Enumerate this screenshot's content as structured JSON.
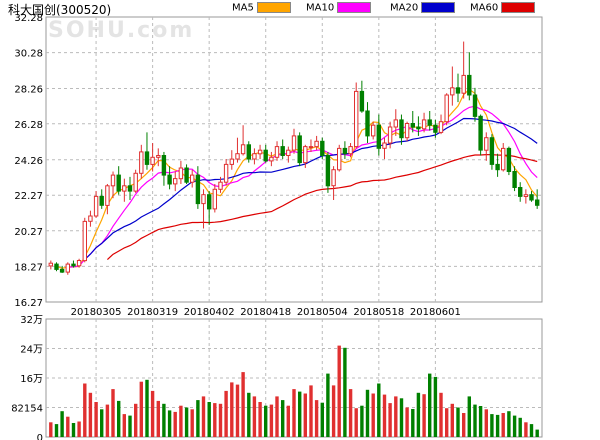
{
  "header": {
    "title": "科大国创(300520)",
    "watermark": "SOHU.com"
  },
  "legend": [
    {
      "label": "MA5",
      "color": "#ffa500"
    },
    {
      "label": "MA10",
      "color": "#ff00ff"
    },
    {
      "label": "MA20",
      "color": "#0000cc"
    },
    {
      "label": "MA60",
      "color": "#dd0000"
    }
  ],
  "colors": {
    "up": "#e03030",
    "down": "#008000",
    "grid": "#bbbbbb"
  },
  "chart_data": [
    {
      "type": "candlestick",
      "y_ticks": [
        "32.28",
        "30.28",
        "28.26",
        "26.28",
        "24.26",
        "22.27",
        "20.27",
        "18.27",
        "16.27"
      ],
      "ylim": [
        16.27,
        32.28
      ],
      "x_tick_labels": [
        "20180305",
        "20180319",
        "20180402",
        "20180418",
        "20180504",
        "20180518",
        "20180601"
      ],
      "x_tick_index": [
        8,
        18,
        28,
        38,
        48,
        58,
        68
      ],
      "grid": true,
      "ohlc": [
        [
          18.3,
          18.6,
          18.1,
          18.45
        ],
        [
          18.4,
          18.5,
          18.0,
          18.1
        ],
        [
          18.1,
          18.3,
          17.9,
          17.95
        ],
        [
          17.95,
          18.5,
          17.8,
          18.4
        ],
        [
          18.4,
          18.6,
          18.2,
          18.3
        ],
        [
          18.3,
          18.7,
          18.2,
          18.6
        ],
        [
          18.6,
          21.0,
          18.5,
          20.8
        ],
        [
          20.8,
          21.4,
          20.5,
          21.1
        ],
        [
          21.1,
          22.5,
          21.0,
          22.2
        ],
        [
          22.2,
          22.6,
          21.5,
          21.7
        ],
        [
          21.7,
          22.9,
          21.2,
          22.8
        ],
        [
          22.8,
          23.6,
          22.1,
          23.4
        ],
        [
          23.4,
          23.9,
          22.3,
          22.5
        ],
        [
          22.5,
          23.2,
          21.9,
          22.8
        ],
        [
          22.8,
          23.3,
          22.0,
          22.5
        ],
        [
          22.5,
          23.7,
          22.4,
          23.5
        ],
        [
          23.5,
          25.1,
          23.2,
          24.7
        ],
        [
          24.7,
          25.8,
          23.7,
          24.0
        ],
        [
          24.0,
          25.2,
          23.6,
          24.4
        ],
        [
          24.4,
          24.9,
          23.9,
          24.5
        ],
        [
          24.5,
          24.7,
          22.8,
          23.4
        ],
        [
          23.4,
          23.9,
          22.6,
          22.9
        ],
        [
          22.9,
          23.6,
          22.5,
          23.2
        ],
        [
          23.2,
          24.2,
          22.9,
          23.8
        ],
        [
          23.8,
          24.0,
          22.9,
          23.0
        ],
        [
          23.0,
          23.7,
          22.7,
          23.4
        ],
        [
          23.4,
          23.9,
          21.5,
          21.8
        ],
        [
          21.8,
          22.6,
          20.4,
          22.3
        ],
        [
          22.3,
          22.5,
          20.6,
          21.5
        ],
        [
          21.5,
          22.9,
          21.3,
          22.6
        ],
        [
          22.6,
          23.3,
          22.4,
          23.0
        ],
        [
          23.0,
          24.3,
          22.8,
          24.0
        ],
        [
          24.0,
          24.8,
          23.7,
          24.3
        ],
        [
          24.3,
          25.5,
          24.1,
          24.6
        ],
        [
          24.6,
          26.2,
          24.5,
          25.1
        ],
        [
          25.1,
          25.3,
          24.1,
          24.3
        ],
        [
          24.3,
          24.9,
          24.0,
          24.6
        ],
        [
          24.6,
          25.1,
          24.3,
          24.8
        ],
        [
          24.8,
          25.1,
          24.1,
          24.2
        ],
        [
          24.2,
          24.7,
          23.9,
          24.4
        ],
        [
          24.4,
          25.3,
          24.2,
          25.0
        ],
        [
          25.0,
          25.4,
          24.3,
          24.5
        ],
        [
          24.5,
          25.0,
          24.1,
          24.8
        ],
        [
          24.8,
          26.0,
          24.6,
          25.6
        ],
        [
          25.6,
          25.8,
          23.9,
          24.1
        ],
        [
          24.1,
          25.1,
          23.8,
          25.0
        ],
        [
          25.0,
          25.4,
          24.7,
          25.0
        ],
        [
          25.0,
          25.6,
          24.8,
          25.3
        ],
        [
          25.3,
          25.5,
          24.3,
          24.5
        ],
        [
          24.5,
          24.7,
          22.4,
          22.8
        ],
        [
          22.8,
          23.9,
          22.0,
          23.7
        ],
        [
          23.7,
          25.1,
          23.6,
          24.9
        ],
        [
          24.9,
          25.3,
          24.3,
          24.6
        ],
        [
          24.6,
          25.2,
          24.4,
          25.0
        ],
        [
          25.0,
          28.6,
          24.9,
          28.1
        ],
        [
          28.1,
          28.7,
          26.9,
          27.0
        ],
        [
          27.0,
          27.5,
          25.2,
          25.6
        ],
        [
          25.6,
          26.4,
          25.4,
          26.2
        ],
        [
          26.2,
          26.8,
          24.5,
          24.9
        ],
        [
          24.9,
          25.5,
          24.3,
          25.2
        ],
        [
          25.2,
          26.4,
          24.9,
          26.1
        ],
        [
          26.1,
          27.1,
          25.6,
          26.5
        ],
        [
          26.5,
          26.8,
          25.1,
          25.5
        ],
        [
          25.5,
          26.4,
          25.3,
          26.3
        ],
        [
          26.3,
          27.0,
          25.8,
          26.1
        ],
        [
          26.1,
          26.7,
          25.6,
          26.0
        ],
        [
          26.0,
          26.9,
          25.8,
          26.5
        ],
        [
          26.5,
          27.0,
          25.9,
          26.2
        ],
        [
          26.2,
          26.5,
          25.5,
          25.8
        ],
        [
          25.8,
          26.8,
          25.7,
          26.4
        ],
        [
          26.4,
          28.0,
          26.2,
          27.9
        ],
        [
          27.9,
          29.5,
          27.3,
          28.3
        ],
        [
          28.3,
          29.1,
          27.5,
          28.0
        ],
        [
          28.0,
          30.9,
          27.7,
          29.0
        ],
        [
          29.0,
          30.3,
          27.6,
          27.9
        ],
        [
          27.9,
          28.3,
          26.4,
          26.7
        ],
        [
          26.7,
          26.8,
          24.5,
          24.8
        ],
        [
          24.8,
          25.8,
          24.2,
          25.5
        ],
        [
          25.5,
          25.7,
          23.7,
          24.0
        ],
        [
          24.0,
          24.6,
          23.3,
          23.7
        ],
        [
          23.7,
          25.2,
          23.6,
          24.9
        ],
        [
          24.9,
          25.0,
          23.4,
          23.6
        ],
        [
          23.6,
          23.9,
          22.5,
          22.7
        ],
        [
          22.7,
          23.0,
          21.9,
          22.2
        ],
        [
          22.2,
          22.6,
          21.8,
          22.3
        ],
        [
          22.3,
          22.5,
          21.9,
          22.0
        ],
        [
          22.0,
          22.6,
          21.5,
          21.7
        ]
      ]
    },
    {
      "type": "bar",
      "y_ticks": [
        "32万",
        "24万",
        "16万",
        "82154",
        "0"
      ],
      "ylim": [
        0,
        320000
      ],
      "volume": [
        40000,
        35000,
        70000,
        55000,
        38000,
        42000,
        145000,
        120000,
        95000,
        75000,
        88000,
        130000,
        98000,
        62000,
        58000,
        90000,
        150000,
        155000,
        125000,
        98000,
        90000,
        72000,
        68000,
        85000,
        80000,
        75000,
        100000,
        110000,
        95000,
        92000,
        90000,
        125000,
        148000,
        142000,
        176000,
        120000,
        110000,
        95000,
        85000,
        88000,
        110000,
        100000,
        85000,
        130000,
        123000,
        118000,
        140000,
        100000,
        93000,
        172000,
        140000,
        248000,
        242000,
        130000,
        78000,
        85000,
        128000,
        118000,
        145000,
        115000,
        92000,
        110000,
        105000,
        80000,
        76000,
        120000,
        116000,
        172000,
        163000,
        120000,
        78000,
        90000,
        80000,
        65000,
        110000,
        88000,
        84000,
        75000,
        62000,
        60000,
        65000,
        70000,
        58000,
        52000,
        40000,
        35000,
        20000
      ]
    }
  ]
}
